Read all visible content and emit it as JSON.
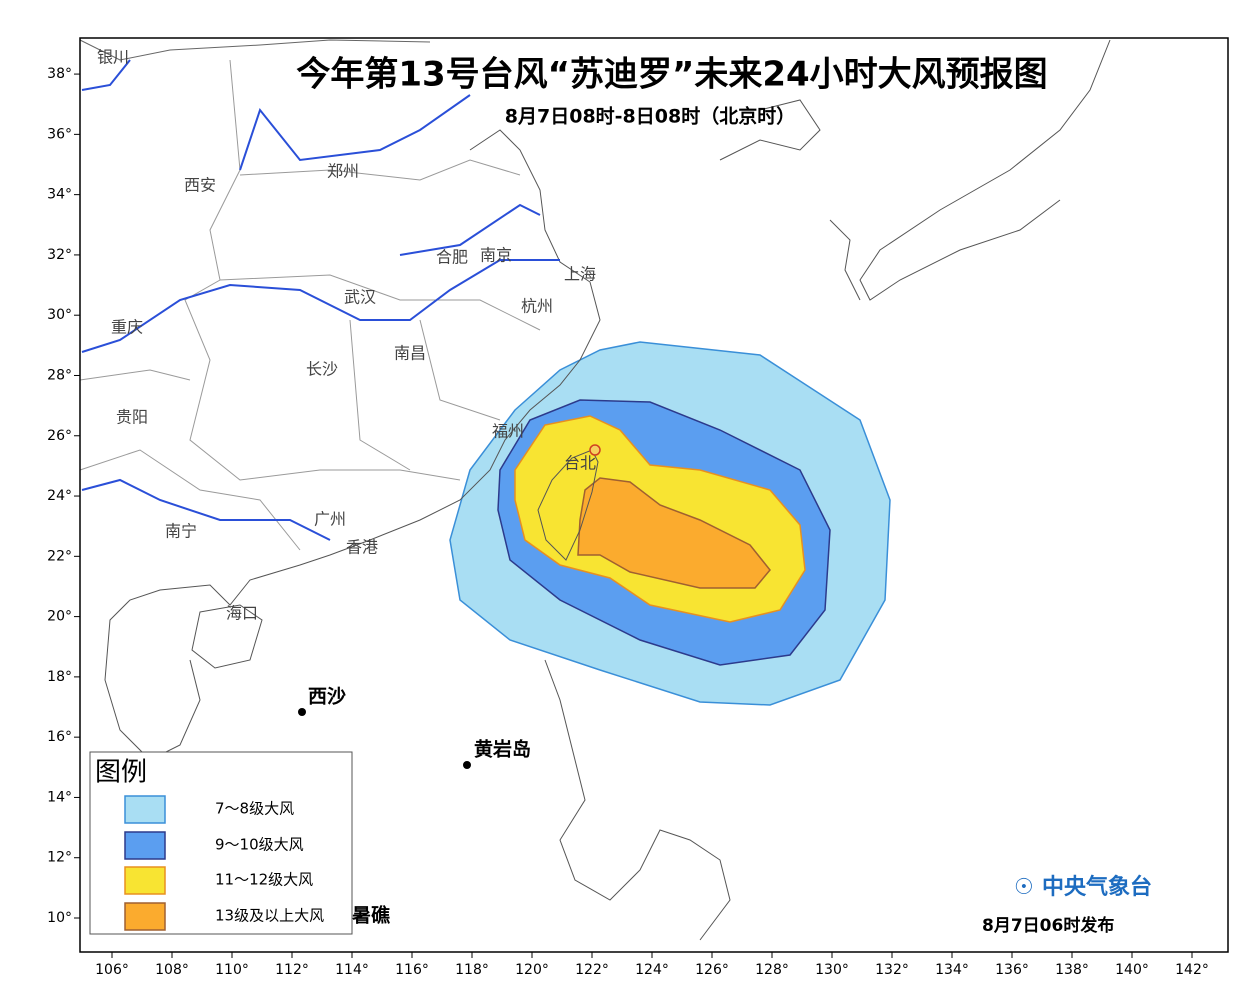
{
  "map": {
    "title": "今年第13号台风“苏迪罗”未来24小时大风预报图",
    "subtitle": "8月7日08时-8日08时（北京时）",
    "lon_ticks": [
      {
        "value": 106,
        "label": "106°"
      },
      {
        "value": 108,
        "label": "108°"
      },
      {
        "value": 110,
        "label": "110°"
      },
      {
        "value": 112,
        "label": "112°"
      },
      {
        "value": 114,
        "label": "114°"
      },
      {
        "value": 116,
        "label": "116°"
      },
      {
        "value": 118,
        "label": "118°"
      },
      {
        "value": 120,
        "label": "120°"
      },
      {
        "value": 122,
        "label": "122°"
      },
      {
        "value": 124,
        "label": "124°"
      },
      {
        "value": 126,
        "label": "126°"
      },
      {
        "value": 128,
        "label": "128°"
      },
      {
        "value": 130,
        "label": "130°"
      },
      {
        "value": 132,
        "label": "132°"
      },
      {
        "value": 134,
        "label": "134°"
      },
      {
        "value": 136,
        "label": "136°"
      },
      {
        "value": 138,
        "label": "138°"
      },
      {
        "value": 140,
        "label": "140°"
      },
      {
        "value": 142,
        "label": "142°"
      }
    ],
    "lat_ticks": [
      {
        "value": 10,
        "label": "10°"
      },
      {
        "value": 12,
        "label": "12°"
      },
      {
        "value": 14,
        "label": "14°"
      },
      {
        "value": 16,
        "label": "16°"
      },
      {
        "value": 18,
        "label": "18°"
      },
      {
        "value": 20,
        "label": "20°"
      },
      {
        "value": 22,
        "label": "22°"
      },
      {
        "value": 24,
        "label": "24°"
      },
      {
        "value": 26,
        "label": "26°"
      },
      {
        "value": 28,
        "label": "28°"
      },
      {
        "value": 30,
        "label": "30°"
      },
      {
        "value": 32,
        "label": "32°"
      },
      {
        "value": 34,
        "label": "34°"
      },
      {
        "value": 36,
        "label": "36°"
      },
      {
        "value": 38,
        "label": "38°"
      }
    ],
    "cities": [
      "银川",
      "西安",
      "郑州",
      "合肥",
      "南京",
      "上海",
      "武汉",
      "杭州",
      "重庆",
      "长沙",
      "南昌",
      "贵阳",
      "福州",
      "台北",
      "南宁",
      "广州",
      "香港",
      "海口"
    ],
    "places": [
      "西沙",
      "黄岩岛",
      "暑礁"
    ],
    "legend": {
      "title": "图例",
      "items": [
        {
          "label": "7～8级大风",
          "color": "#a9def3"
        },
        {
          "label": "9～10级大风",
          "color": "#5b9ef0"
        },
        {
          "label": "11～12级大风",
          "color": "#f8e432"
        },
        {
          "label": "13级及以上大风",
          "color": "#fbab2e"
        }
      ]
    },
    "publisher": "中央气象台",
    "issued": "8月7日06时发布"
  }
}
